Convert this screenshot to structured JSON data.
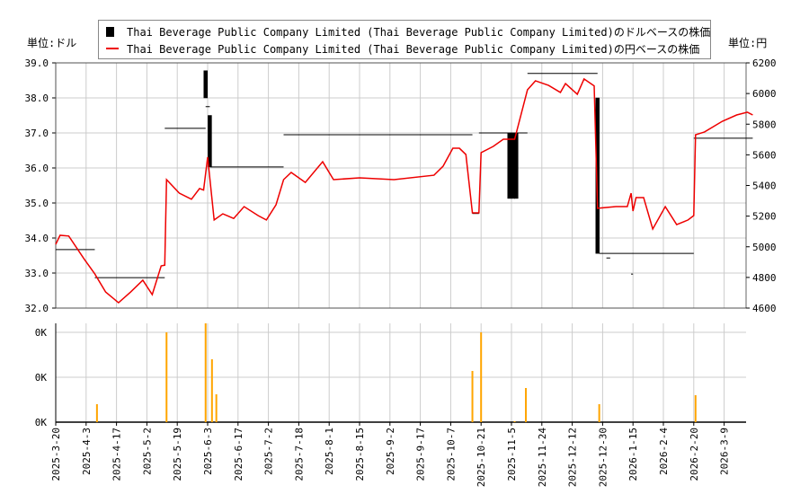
{
  "chart_data": [
    {
      "type": "line",
      "legend": {
        "placement": "top",
        "entries": [
          {
            "label": "Thai Beverage Public Company Limited (Thai Beverage Public Company Limited)のドルベースの株価",
            "color": "#000000"
          },
          {
            "label": "Thai Beverage Public Company Limited (Thai Beverage Public Company Limited)の円ベースの株価",
            "color": "#ee0000"
          }
        ]
      },
      "left_unit": "単位:ドル",
      "right_unit": "単位:円",
      "ylim_left": [
        32.0,
        39.0
      ],
      "ylim_right": [
        4600,
        6200
      ],
      "yticks_left": [
        "32.0",
        "33.0",
        "34.0",
        "35.0",
        "36.0",
        "37.0",
        "38.0",
        "39.0"
      ],
      "yticks_right": [
        "4600",
        "4800",
        "5000",
        "5200",
        "5400",
        "5600",
        "5800",
        "6000",
        "6200"
      ],
      "grid": true,
      "xticks": [
        "2025-3-20",
        "2025-4-3",
        "2025-4-17",
        "2025-5-2",
        "2025-5-19",
        "2025-6-3",
        "2025-6-17",
        "2025-7-2",
        "2025-7-18",
        "2025-8-1",
        "2025-8-15",
        "2025-9-2",
        "2025-9-17",
        "2025-10-7",
        "2025-10-21",
        "2025-11-5",
        "2025-11-24",
        "2025-12-12",
        "2025-12-30",
        "2026-1-15",
        "2026-2-4",
        "2026-2-20",
        "2026-3-9"
      ],
      "usd_segments": [
        {
          "from": "2025-3-20",
          "to": "2025-4-7",
          "value": 33.67
        },
        {
          "from": "2025-4-7",
          "to": "2025-5-12",
          "value": 32.87
        },
        {
          "from": "2025-5-12",
          "to": "2025-6-2",
          "value": 37.13
        },
        {
          "from": "2025-6-1",
          "to": "2025-6-3",
          "value": 38.77
        },
        {
          "from": "2025-6-2",
          "to": "2025-6-4",
          "value": 37.75
        },
        {
          "from": "2025-6-4",
          "to": "2025-7-10",
          "value": 36.03
        },
        {
          "from": "2025-7-10",
          "to": "2025-10-17",
          "value": 36.95
        },
        {
          "from": "2025-10-17",
          "to": "2025-10-20",
          "value": 34.7
        },
        {
          "from": "2025-10-20",
          "to": "2025-11-15",
          "value": 37.0
        },
        {
          "from": "2025-11-15",
          "to": "2025-12-27",
          "value": 38.7
        },
        {
          "from": "2025-12-28",
          "to": "2026-2-20",
          "value": 33.56
        },
        {
          "from": "2026-1-1",
          "to": "2026-1-3",
          "value": 33.43
        },
        {
          "from": "2026-1-14",
          "to": "2026-1-15",
          "value": 32.97
        },
        {
          "from": "2026-2-20",
          "to": "2026-3-25",
          "value": 36.85
        }
      ],
      "usd_bars": [
        {
          "date": "2025-6-2",
          "open": 38.77,
          "close": 38.0
        },
        {
          "date": "2025-6-4",
          "open": 37.5,
          "close": 36.03
        },
        {
          "date": "2025-11-4",
          "open": 37.0,
          "close": 35.13
        },
        {
          "date": "2025-11-6",
          "open": 37.0,
          "close": 35.13
        },
        {
          "date": "2025-11-8",
          "open": 37.0,
          "close": 35.13
        },
        {
          "date": "2025-12-27",
          "open": 38.0,
          "close": 33.56
        }
      ],
      "jpy_series": [
        [
          "2025-3-20",
          5016
        ],
        [
          "2025-3-22",
          5075
        ],
        [
          "2025-3-26",
          5070
        ],
        [
          "2025-4-2",
          4922
        ],
        [
          "2025-4-7",
          4823
        ],
        [
          "2025-4-12",
          4705
        ],
        [
          "2025-4-18",
          4635
        ],
        [
          "2025-4-24",
          4705
        ],
        [
          "2025-4-30",
          4782
        ],
        [
          "2025-5-5",
          4688
        ],
        [
          "2025-5-10",
          4875
        ],
        [
          "2025-5-12",
          4880
        ],
        [
          "2025-5-13",
          5438
        ],
        [
          "2025-5-20",
          5350
        ],
        [
          "2025-5-26",
          5310
        ],
        [
          "2025-5-30",
          5380
        ],
        [
          "2025-6-1",
          5370
        ],
        [
          "2025-6-3",
          5585
        ],
        [
          "2025-6-6",
          5175
        ],
        [
          "2025-6-10",
          5215
        ],
        [
          "2025-6-15",
          5185
        ],
        [
          "2025-6-20",
          5262
        ],
        [
          "2025-6-27",
          5203
        ],
        [
          "2025-7-1",
          5175
        ],
        [
          "2025-7-6",
          5274
        ],
        [
          "2025-7-10",
          5438
        ],
        [
          "2025-7-14",
          5485
        ],
        [
          "2025-7-21",
          5420
        ],
        [
          "2025-7-29",
          5555
        ],
        [
          "2025-8-3",
          5438
        ],
        [
          "2025-8-15",
          5450
        ],
        [
          "2025-9-4",
          5438
        ],
        [
          "2025-9-26",
          5467
        ],
        [
          "2025-10-2",
          5526
        ],
        [
          "2025-10-8",
          5643
        ],
        [
          "2025-10-11",
          5643
        ],
        [
          "2025-10-14",
          5602
        ],
        [
          "2025-10-17",
          5221
        ],
        [
          "2025-10-20",
          5221
        ],
        [
          "2025-10-21",
          5614
        ],
        [
          "2025-10-27",
          5655
        ],
        [
          "2025-11-1",
          5702
        ],
        [
          "2025-11-7",
          5702
        ],
        [
          "2025-11-15",
          6024
        ],
        [
          "2025-11-20",
          6083
        ],
        [
          "2025-11-28",
          6053
        ],
        [
          "2025-12-5",
          6007
        ],
        [
          "2025-12-8",
          6065
        ],
        [
          "2025-12-15",
          5995
        ],
        [
          "2025-12-19",
          6095
        ],
        [
          "2025-12-25",
          6050
        ],
        [
          "2025-12-27",
          5251
        ],
        [
          "2026-1-6",
          5262
        ],
        [
          "2026-1-12",
          5262
        ],
        [
          "2026-1-14",
          5350
        ],
        [
          "2026-1-15",
          5233
        ],
        [
          "2026-1-17",
          5321
        ],
        [
          "2026-1-22",
          5321
        ],
        [
          "2026-1-28",
          5116
        ],
        [
          "2026-2-5",
          5262
        ],
        [
          "2026-2-11",
          5145
        ],
        [
          "2026-2-17",
          5175
        ],
        [
          "2026-2-20",
          5204
        ],
        [
          "2026-2-21",
          5731
        ],
        [
          "2026-2-26",
          5749
        ],
        [
          "2026-3-8",
          5819
        ],
        [
          "2026-3-16",
          5860
        ],
        [
          "2026-3-22",
          5878
        ],
        [
          "2026-3-25",
          5860
        ]
      ]
    },
    {
      "type": "bar",
      "yticks": [
        "0K",
        "0K",
        "0K"
      ],
      "ylim": [
        0,
        110
      ],
      "bar_color": "#ffa500",
      "volume": [
        [
          "2025-4-8",
          20
        ],
        [
          "2025-5-13",
          100
        ],
        [
          "2025-6-2",
          110
        ],
        [
          "2025-6-5",
          70
        ],
        [
          "2025-6-7",
          31
        ],
        [
          "2025-10-17",
          57
        ],
        [
          "2025-10-21",
          100
        ],
        [
          "2025-11-7",
          1
        ],
        [
          "2025-11-14",
          38
        ],
        [
          "2025-12-28",
          20
        ],
        [
          "2026-2-21",
          30
        ]
      ]
    }
  ]
}
